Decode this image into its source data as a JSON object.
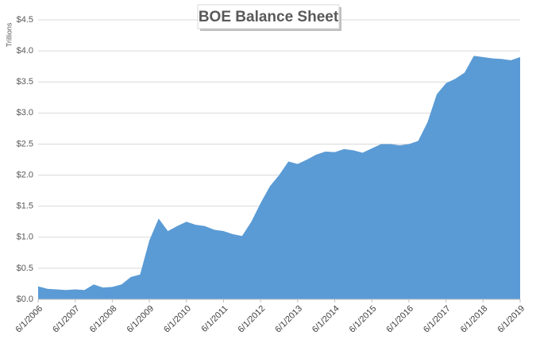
{
  "chart_data": {
    "type": "area",
    "title": "BOE Balance Sheet",
    "y_label": "Trillions",
    "color": "#5b9bd5",
    "grid": true,
    "x": [
      "6/1/2006",
      "9/1/2006",
      "12/1/2006",
      "3/1/2007",
      "6/1/2007",
      "9/1/2007",
      "12/1/2007",
      "3/1/2008",
      "6/1/2008",
      "9/1/2008",
      "12/1/2008",
      "3/1/2009",
      "6/1/2009",
      "9/1/2009",
      "12/1/2009",
      "3/1/2010",
      "6/1/2010",
      "9/1/2010",
      "12/1/2010",
      "3/1/2011",
      "6/1/2011",
      "9/1/2011",
      "12/1/2011",
      "3/1/2012",
      "6/1/2012",
      "9/1/2012",
      "12/1/2012",
      "3/1/2013",
      "6/1/2013",
      "9/1/2013",
      "12/1/2013",
      "3/1/2014",
      "6/1/2014",
      "9/1/2014",
      "12/1/2014",
      "3/1/2015",
      "6/1/2015",
      "9/1/2015",
      "12/1/2015",
      "3/1/2016",
      "6/1/2016",
      "9/1/2016",
      "12/1/2016",
      "3/1/2017",
      "6/1/2017",
      "9/1/2017",
      "12/1/2017",
      "3/1/2018",
      "6/1/2018",
      "9/1/2018",
      "12/1/2018",
      "3/1/2019",
      "6/1/2019"
    ],
    "values": [
      0.21,
      0.17,
      0.16,
      0.15,
      0.16,
      0.15,
      0.24,
      0.19,
      0.2,
      0.24,
      0.36,
      0.4,
      0.95,
      1.3,
      1.1,
      1.18,
      1.25,
      1.2,
      1.18,
      1.12,
      1.1,
      1.05,
      1.02,
      1.25,
      1.55,
      1.82,
      2.0,
      2.22,
      2.18,
      2.25,
      2.33,
      2.38,
      2.37,
      2.42,
      2.4,
      2.36,
      2.43,
      2.5,
      2.5,
      2.48,
      2.5,
      2.55,
      2.85,
      3.3,
      3.48,
      3.55,
      3.65,
      3.92,
      3.9,
      3.88,
      3.87,
      3.85,
      3.9
    ],
    "xlim": [
      "6/1/2006",
      "6/1/2019"
    ],
    "xticks": [
      "6/1/2006",
      "6/1/2007",
      "6/1/2008",
      "6/1/2009",
      "6/1/2010",
      "6/1/2011",
      "6/1/2012",
      "6/1/2013",
      "6/1/2014",
      "6/1/2015",
      "6/1/2016",
      "6/1/2017",
      "6/1/2018",
      "6/1/2019"
    ],
    "ylim": [
      0,
      4.5
    ],
    "yticks": [
      {
        "value": 0,
        "label": "$0.0"
      },
      {
        "value": 0.5,
        "label": "$0.5"
      },
      {
        "value": 1,
        "label": "$1.0"
      },
      {
        "value": 1.5,
        "label": "$1.5"
      },
      {
        "value": 2,
        "label": "$2.0"
      },
      {
        "value": 2.5,
        "label": "$2.5"
      },
      {
        "value": 3,
        "label": "$3.0"
      },
      {
        "value": 3.5,
        "label": "$3.5"
      },
      {
        "value": 4,
        "label": "$4.0"
      },
      {
        "value": 4.5,
        "label": "$4.5"
      }
    ]
  }
}
